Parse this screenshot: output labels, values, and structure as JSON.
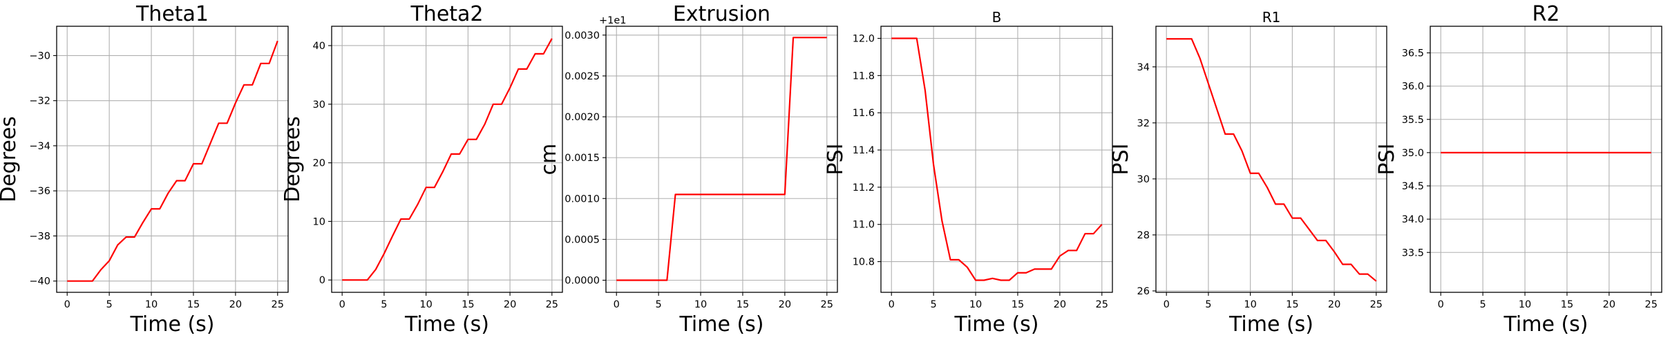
{
  "chart_data": [
    {
      "type": "line",
      "title": "Theta1",
      "xlabel": "Time (s)",
      "ylabel": "Degrees",
      "xlim": [
        -1.25,
        26.25
      ],
      "ylim": [
        -40.5,
        -28.7
      ],
      "xticks": [
        0,
        5,
        10,
        15,
        20,
        25
      ],
      "yticks": [
        -40,
        -38,
        -36,
        -34,
        -32,
        -30
      ],
      "yticklabels": [
        "−40",
        "−38",
        "−36",
        "−34",
        "−32",
        "−30"
      ],
      "offset_label": "",
      "grid": true,
      "series": [
        {
          "color": "#ff0000",
          "x": [
            0,
            3,
            4,
            5,
            6,
            7,
            8,
            9,
            10,
            11,
            12,
            13,
            14,
            15,
            16,
            17,
            18,
            19,
            20,
            21,
            22,
            23,
            24,
            25
          ],
          "y": [
            -40,
            -40,
            -39.5,
            -39.1,
            -38.4,
            -38.05,
            -38.05,
            -37.4,
            -36.8,
            -36.8,
            -36.1,
            -35.55,
            -35.55,
            -34.8,
            -34.8,
            -33.9,
            -33.0,
            -33.0,
            -32.1,
            -31.3,
            -31.3,
            -30.35,
            -30.35,
            -29.35
          ]
        }
      ]
    },
    {
      "type": "line",
      "title": "Theta2",
      "xlabel": "Time (s)",
      "ylabel": "Degrees",
      "xlim": [
        -1.25,
        26.25
      ],
      "ylim": [
        -2.1,
        43.3
      ],
      "xticks": [
        0,
        5,
        10,
        15,
        20,
        25
      ],
      "yticks": [
        0,
        10,
        20,
        30,
        40
      ],
      "yticklabels": [
        "0",
        "10",
        "20",
        "30",
        "40"
      ],
      "offset_label": "",
      "grid": true,
      "series": [
        {
          "color": "#ff0000",
          "x": [
            0,
            3,
            4,
            5,
            6,
            7,
            8,
            9,
            10,
            11,
            12,
            13,
            14,
            15,
            16,
            17,
            18,
            19,
            20,
            21,
            22,
            23,
            24,
            25
          ],
          "y": [
            0,
            0,
            1.8,
            4.5,
            7.5,
            10.4,
            10.4,
            12.9,
            15.8,
            15.8,
            18.5,
            21.5,
            21.5,
            24.0,
            24.0,
            26.6,
            30.0,
            30.0,
            32.8,
            36.0,
            36.0,
            38.6,
            38.6,
            41.2
          ]
        }
      ]
    },
    {
      "type": "line",
      "title": "Extrusion",
      "xlabel": "Time (s)",
      "ylabel": "cm",
      "xlim": [
        -1.25,
        26.25
      ],
      "ylim": [
        -0.000148,
        0.003108
      ],
      "xticks": [
        0,
        5,
        10,
        15,
        20,
        25
      ],
      "yticks": [
        0,
        0.0005,
        0.001,
        0.0015,
        0.002,
        0.0025,
        0.003
      ],
      "yticklabels": [
        "0.0000",
        "0.0005",
        "0.0010",
        "0.0015",
        "0.0020",
        "0.0025",
        "0.0030"
      ],
      "offset_label": "+1e1",
      "grid": true,
      "series": [
        {
          "color": "#ff0000",
          "x": [
            0,
            6,
            7,
            20,
            21,
            25
          ],
          "y": [
            0,
            0,
            0.00105,
            0.00105,
            0.00297,
            0.00297
          ]
        }
      ]
    },
    {
      "type": "line",
      "title": "B",
      "xlabel": "Time (s)",
      "ylabel": "PSI",
      "xlim": [
        -1.25,
        26.25
      ],
      "ylim": [
        10.635,
        12.065
      ],
      "xticks": [
        0,
        5,
        10,
        15,
        20,
        25
      ],
      "yticks": [
        10.8,
        11.0,
        11.2,
        11.4,
        11.6,
        11.8,
        12.0
      ],
      "yticklabels": [
        "10.8",
        "11.0",
        "11.2",
        "11.4",
        "11.6",
        "11.8",
        "12.0"
      ],
      "offset_label": "",
      "grid": true,
      "series": [
        {
          "color": "#ff0000",
          "x": [
            0,
            1,
            2,
            3,
            4,
            5,
            6,
            7,
            8,
            9,
            10,
            11,
            12,
            13,
            14,
            15,
            16,
            17,
            18,
            19,
            20,
            21,
            22,
            23,
            24,
            25
          ],
          "y": [
            12.0,
            12.0,
            12.0,
            12.0,
            11.72,
            11.32,
            11.02,
            10.81,
            10.81,
            10.77,
            10.7,
            10.7,
            10.71,
            10.7,
            10.7,
            10.74,
            10.74,
            10.76,
            10.76,
            10.76,
            10.83,
            10.86,
            10.86,
            10.95,
            10.95,
            11.0
          ]
        }
      ]
    },
    {
      "type": "line",
      "title": "R1",
      "xlabel": "Time (s)",
      "ylabel": "PSI",
      "xlim": [
        -1.25,
        26.25
      ],
      "ylim": [
        25.95,
        35.45
      ],
      "xticks": [
        0,
        5,
        10,
        15,
        20,
        25
      ],
      "yticks": [
        26,
        28,
        30,
        32,
        34
      ],
      "yticklabels": [
        "26",
        "28",
        "30",
        "32",
        "34"
      ],
      "offset_label": "",
      "grid": true,
      "series": [
        {
          "color": "#ff0000",
          "x": [
            0,
            3,
            4,
            5,
            6,
            7,
            8,
            9,
            10,
            11,
            12,
            13,
            14,
            15,
            16,
            17,
            18,
            19,
            20,
            21,
            22,
            23,
            24,
            25
          ],
          "y": [
            35.0,
            35.0,
            34.3,
            33.4,
            32.5,
            31.6,
            31.6,
            31.0,
            30.2,
            30.2,
            29.7,
            29.1,
            29.1,
            28.6,
            28.6,
            28.2,
            27.8,
            27.8,
            27.4,
            26.95,
            26.95,
            26.6,
            26.6,
            26.35
          ]
        }
      ]
    },
    {
      "type": "line",
      "title": "R2",
      "xlabel": "Time (s)",
      "ylabel": "PSI",
      "xlim": [
        -1.25,
        26.25
      ],
      "ylim": [
        32.9,
        36.9
      ],
      "xticks": [
        0,
        5,
        10,
        15,
        20,
        25
      ],
      "yticks": [
        33.5,
        34.0,
        34.5,
        35.0,
        35.5,
        36.0,
        36.5
      ],
      "yticklabels": [
        "33.5",
        "34.0",
        "34.5",
        "35.0",
        "35.5",
        "36.0",
        "36.5"
      ],
      "offset_label": "",
      "grid": true,
      "series": [
        {
          "color": "#ff0000",
          "x": [
            0,
            25
          ],
          "y": [
            35.0,
            35.0
          ]
        }
      ]
    }
  ]
}
